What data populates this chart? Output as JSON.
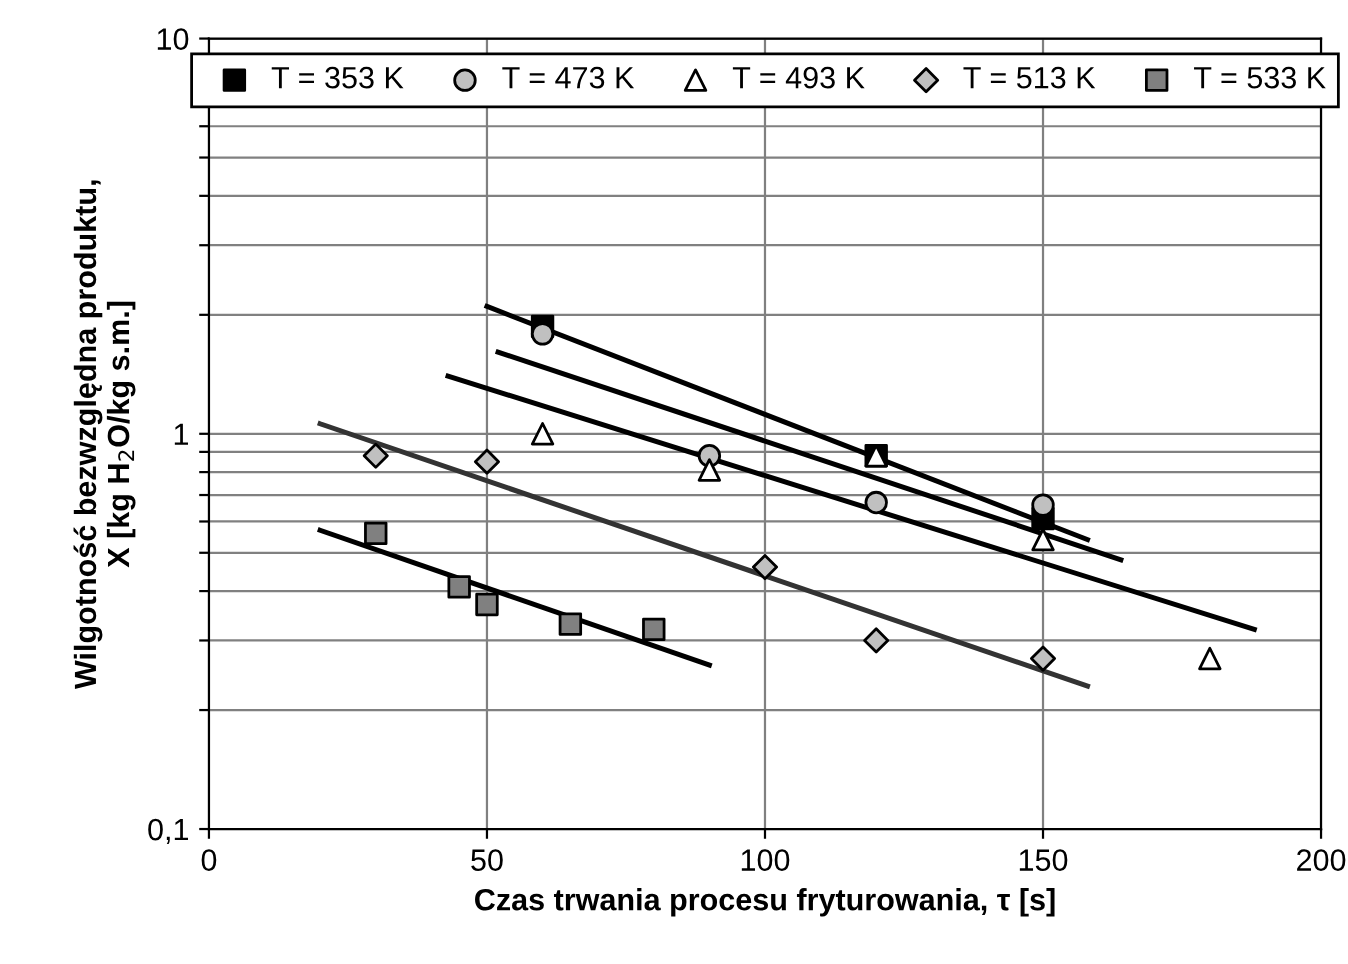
{
  "chart_data": {
    "type": "scatter",
    "xlabel": "Czas trwania procesu fryturowania, τ [s]",
    "ylabel": "Wilgotność bezwzględna produktu,\nX [kg H$_{2}$O/kg s.m.]",
    "log": "y",
    "xlim": [
      0,
      200
    ],
    "xticks": [
      0,
      50,
      100,
      150,
      200
    ],
    "ylim": [
      0.1,
      10
    ],
    "yticks": [
      {
        "value": 0.1,
        "label": "0,1"
      },
      {
        "value": 0.2,
        "label": null
      },
      {
        "value": 0.3,
        "label": null
      },
      {
        "value": 0.4,
        "label": null
      },
      {
        "value": 0.5,
        "label": null
      },
      {
        "value": 0.6,
        "label": null
      },
      {
        "value": 0.7,
        "label": null
      },
      {
        "value": 0.8,
        "label": null
      },
      {
        "value": 0.9,
        "label": null
      },
      1,
      {
        "value": 2,
        "label": null
      },
      {
        "value": 3,
        "label": null
      },
      {
        "value": 4,
        "label": null
      },
      {
        "value": 5,
        "label": null
      },
      {
        "value": 6,
        "label": null
      },
      {
        "value": 7,
        "label": null
      },
      {
        "value": 8,
        "label": null
      },
      {
        "value": 9,
        "label": null
      },
      10
    ],
    "grid": true,
    "legend": "top",
    "series": [
      {
        "name": "T = 353 K",
        "color": "#000000",
        "marker": "square",
        "x": [
          60,
          120,
          150
        ],
        "values": [
          1.87,
          0.88,
          0.61
        ]
      },
      {
        "name": "T = 473 K",
        "color": "#c0c0c0",
        "marker": "circle",
        "x": [
          60,
          90,
          120,
          150
        ],
        "values": [
          1.79,
          0.88,
          0.67,
          0.66
        ]
      },
      {
        "name": "T = 493 K",
        "color": "#ffffff",
        "marker": "triangle",
        "x": [
          60,
          90,
          120,
          150,
          180
        ],
        "values": [
          1.0,
          0.81,
          0.88,
          0.54,
          0.27
        ]
      },
      {
        "name": "T = 513 K",
        "color": "#c0c0c0",
        "marker": "diamond",
        "x": [
          30,
          50,
          100,
          120,
          150
        ],
        "values": [
          0.88,
          0.85,
          0.46,
          0.3,
          0.27
        ]
      },
      {
        "name": "T = 533 K",
        "color": "#808080",
        "marker": "square",
        "x": [
          30,
          45,
          50,
          65,
          80
        ],
        "values": [
          0.56,
          0.41,
          0.37,
          0.33,
          0.32
        ]
      },
      {
        "type": "line",
        "color": "#000000",
        "x": [
          50,
          158
        ],
        "values": [
          2.1,
          0.54
        ]
      },
      {
        "type": "line",
        "color": "#000000",
        "x": [
          52,
          164
        ],
        "values": [
          1.61,
          0.48
        ]
      },
      {
        "type": "line",
        "color": "#000000",
        "x": [
          43,
          188
        ],
        "values": [
          1.4,
          0.32
        ]
      },
      {
        "type": "line",
        "color": "#333333",
        "x": [
          20,
          158
        ],
        "values": [
          1.06,
          0.23
        ]
      },
      {
        "type": "line",
        "color": "#000000",
        "x": [
          20,
          90
        ],
        "values": [
          0.57,
          0.26
        ]
      }
    ]
  }
}
